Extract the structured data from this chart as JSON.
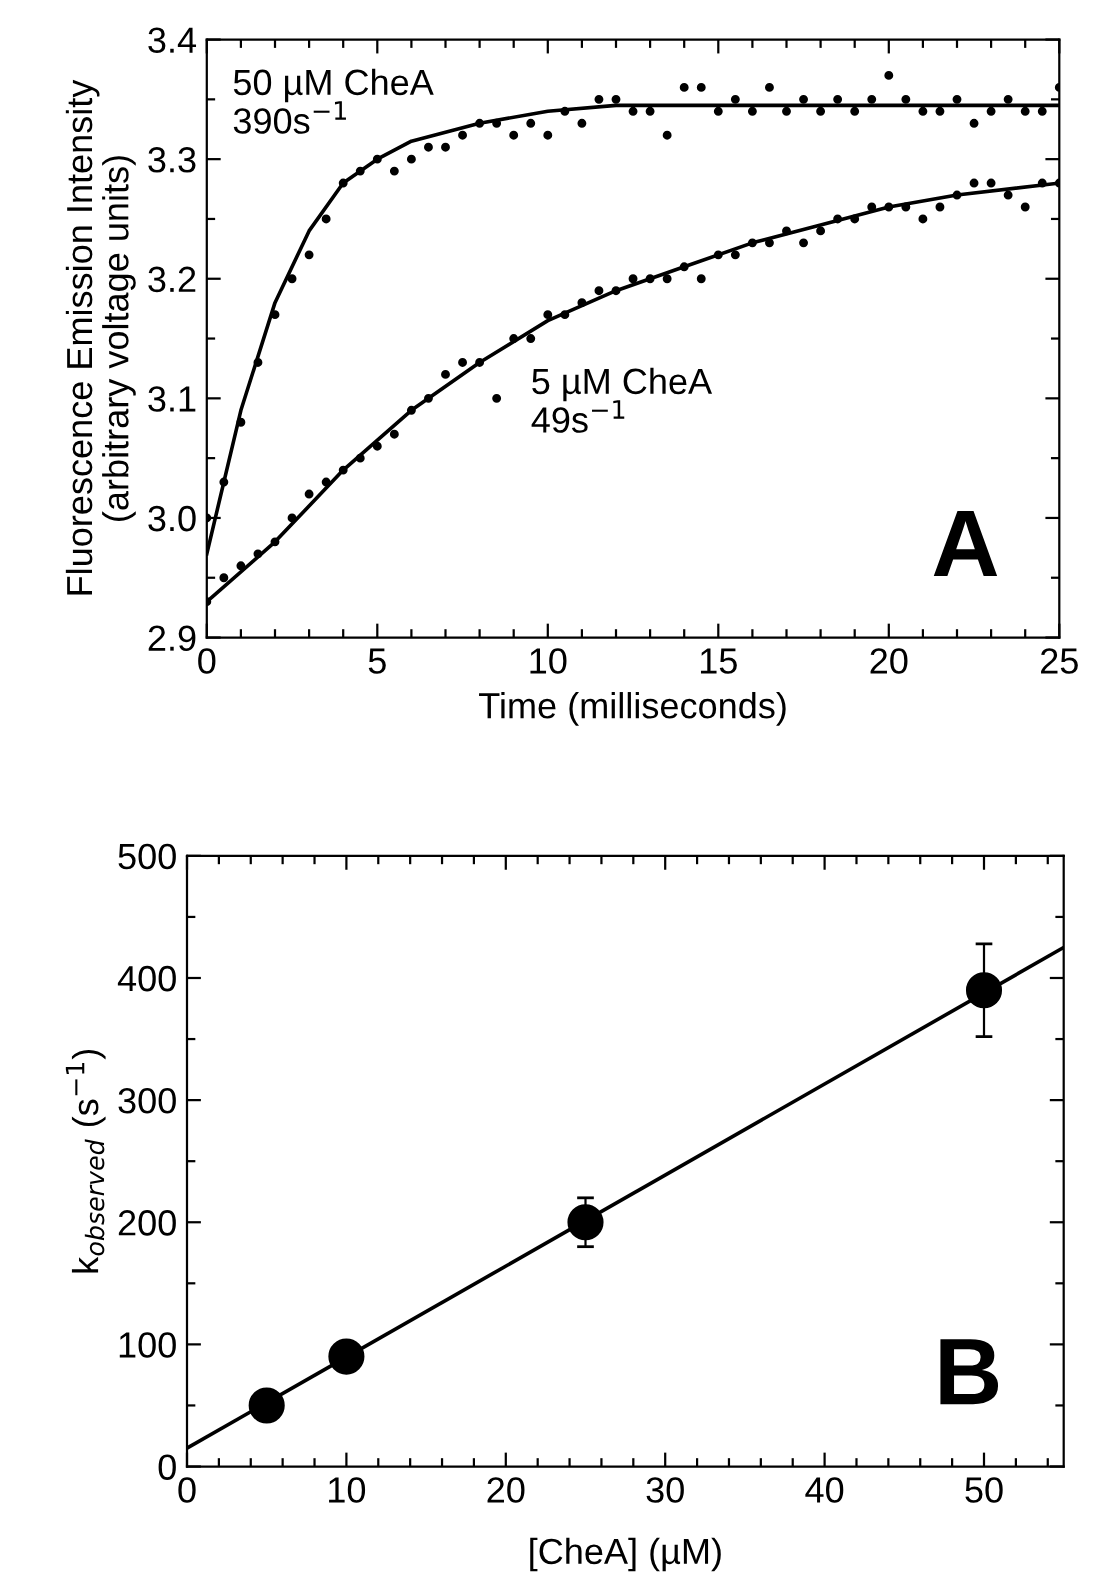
{
  "chart_data": [
    {
      "type": "scatter",
      "xlabel": "Time (milliseconds)",
      "ylabel": "Fluorescence Emission Intensity\n(arbitrary voltage units)",
      "xlim": [
        0,
        25
      ],
      "ylim": [
        2.9,
        3.4
      ],
      "xticks": [
        0,
        {
          "value": 1,
          "label": null
        },
        {
          "value": 2,
          "label": null
        },
        {
          "value": 3,
          "label": null
        },
        {
          "value": 4,
          "label": null
        },
        5,
        {
          "value": 6,
          "label": null
        },
        {
          "value": 7,
          "label": null
        },
        {
          "value": 8,
          "label": null
        },
        {
          "value": 9,
          "label": null
        },
        10,
        {
          "value": 11,
          "label": null
        },
        {
          "value": 12,
          "label": null
        },
        {
          "value": 13,
          "label": null
        },
        {
          "value": 14,
          "label": null
        },
        15,
        {
          "value": 16,
          "label": null
        },
        {
          "value": 17,
          "label": null
        },
        {
          "value": 18,
          "label": null
        },
        {
          "value": 19,
          "label": null
        },
        20,
        {
          "value": 21,
          "label": null
        },
        {
          "value": 22,
          "label": null
        },
        {
          "value": 23,
          "label": null
        },
        {
          "value": 24,
          "label": null
        },
        25
      ],
      "yticks": [
        {
          "value": 2.9,
          "label": "2.9"
        },
        {
          "value": 2.95,
          "label": null
        },
        {
          "value": 3.0,
          "label": "3.0"
        },
        {
          "value": 3.05,
          "label": null
        },
        {
          "value": 3.1,
          "label": "3.1"
        },
        {
          "value": 3.15,
          "label": null
        },
        {
          "value": 3.2,
          "label": "3.2"
        },
        {
          "value": 3.25,
          "label": null
        },
        {
          "value": 3.3,
          "label": "3.3"
        },
        {
          "value": 3.35,
          "label": null
        },
        {
          "value": 3.4,
          "label": "3.4"
        }
      ],
      "marker": "circle",
      "series": [
        {
          "color": "#000000",
          "x": [
            0,
            0.5,
            1,
            1.5,
            2,
            2.5,
            3,
            3.5,
            4,
            4.5,
            5,
            5.5,
            6,
            6.5,
            7,
            7.5,
            8,
            8.5,
            9,
            9.5,
            10,
            10.5,
            11,
            11.5,
            12,
            12.5,
            13,
            13.5,
            14,
            14.5,
            15,
            15.5,
            16,
            16.5,
            17,
            17.5,
            18,
            18.5,
            19,
            19.5,
            20,
            20.5,
            21,
            21.5,
            22,
            22.5,
            23,
            23.5,
            24,
            24.5,
            25
          ],
          "values": [
            3.0,
            3.03,
            3.08,
            3.13,
            3.17,
            3.2,
            3.22,
            3.25,
            3.28,
            3.29,
            3.3,
            3.29,
            3.3,
            3.31,
            3.31,
            3.32,
            3.33,
            3.33,
            3.32,
            3.33,
            3.32,
            3.34,
            3.33,
            3.35,
            3.35,
            3.34,
            3.34,
            3.32,
            3.36,
            3.36,
            3.34,
            3.35,
            3.34,
            3.36,
            3.34,
            3.35,
            3.34,
            3.35,
            3.34,
            3.35,
            3.37,
            3.35,
            3.34,
            3.34,
            3.35,
            3.33,
            3.34,
            3.35,
            3.34,
            3.34,
            3.36
          ]
        },
        {
          "color": "#000000",
          "x": [
            0,
            0.5,
            1,
            1.5,
            2,
            2.5,
            3,
            3.5,
            4,
            4.5,
            5,
            5.5,
            6,
            6.5,
            7,
            7.5,
            8,
            8.5,
            9,
            9.5,
            10,
            10.5,
            11,
            11.5,
            12,
            12.5,
            13,
            13.5,
            14,
            14.5,
            15,
            15.5,
            16,
            16.5,
            17,
            17.5,
            18,
            18.5,
            19,
            19.5,
            20,
            20.5,
            21,
            21.5,
            22,
            22.5,
            23,
            23.5,
            24,
            24.5,
            25
          ],
          "values": [
            2.93,
            2.95,
            2.96,
            2.97,
            2.98,
            3.0,
            3.02,
            3.03,
            3.04,
            3.05,
            3.06,
            3.07,
            3.09,
            3.1,
            3.12,
            3.13,
            3.13,
            3.1,
            3.15,
            3.15,
            3.17,
            3.17,
            3.18,
            3.19,
            3.19,
            3.2,
            3.2,
            3.2,
            3.21,
            3.2,
            3.22,
            3.22,
            3.23,
            3.23,
            3.24,
            3.23,
            3.24,
            3.25,
            3.25,
            3.26,
            3.26,
            3.26,
            3.25,
            3.26,
            3.27,
            3.28,
            3.28,
            3.27,
            3.26,
            3.28,
            3.28
          ]
        },
        {
          "type": "line",
          "color": "#000000",
          "marker": "none",
          "x": [
            0,
            1,
            2,
            3,
            4,
            5,
            6,
            8,
            10,
            12,
            15,
            20,
            25
          ],
          "values": [
            2.97,
            3.09,
            3.18,
            3.24,
            3.28,
            3.3,
            3.315,
            3.33,
            3.34,
            3.345,
            3.345,
            3.345,
            3.345
          ]
        },
        {
          "type": "line",
          "color": "#000000",
          "marker": "none",
          "x": [
            0,
            2,
            4,
            6,
            8,
            10,
            12,
            14,
            16,
            18,
            20,
            22,
            25
          ],
          "values": [
            2.93,
            2.98,
            3.04,
            3.09,
            3.13,
            3.165,
            3.19,
            3.21,
            3.23,
            3.245,
            3.26,
            3.27,
            3.28
          ]
        }
      ],
      "annotations": [
        "50 µM CheA\n390s$^{−1}$",
        "5 µM CheA\n49s$^{−1}$",
        "A"
      ]
    },
    {
      "type": "scatter",
      "xlabel": "[CheA] (µM)",
      "ylabel": "k$_{observed}$ (s$^{−1}$)",
      "xlim": [
        0,
        55
      ],
      "ylim": [
        0,
        500
      ],
      "xticks": [
        0,
        {
          "value": 2,
          "label": null
        },
        {
          "value": 4,
          "label": null
        },
        {
          "value": 6,
          "label": null
        },
        {
          "value": 8,
          "label": null
        },
        10,
        {
          "value": 12,
          "label": null
        },
        {
          "value": 14,
          "label": null
        },
        {
          "value": 16,
          "label": null
        },
        {
          "value": 18,
          "label": null
        },
        20,
        {
          "value": 22,
          "label": null
        },
        {
          "value": 24,
          "label": null
        },
        {
          "value": 26,
          "label": null
        },
        {
          "value": 28,
          "label": null
        },
        30,
        {
          "value": 32,
          "label": null
        },
        {
          "value": 34,
          "label": null
        },
        {
          "value": 36,
          "label": null
        },
        {
          "value": 38,
          "label": null
        },
        40,
        {
          "value": 42,
          "label": null
        },
        {
          "value": 44,
          "label": null
        },
        {
          "value": 46,
          "label": null
        },
        {
          "value": 48,
          "label": null
        },
        50,
        {
          "value": 52,
          "label": null
        },
        {
          "value": 54,
          "label": null
        }
      ],
      "yticks": [
        0,
        {
          "value": 50,
          "label": null
        },
        100,
        {
          "value": 150,
          "label": null
        },
        200,
        {
          "value": 250,
          "label": null
        },
        300,
        {
          "value": 350,
          "label": null
        },
        400,
        {
          "value": 450,
          "label": null
        },
        500
      ],
      "marker": "circle",
      "series": [
        {
          "type": "line",
          "color": "#000000",
          "marker": "none",
          "x": [
            0,
            55
          ],
          "values": [
            15,
            425
          ]
        },
        {
          "color": "#000000",
          "x": [
            5,
            10,
            25,
            50
          ],
          "values": [
            50,
            90,
            200,
            390
          ],
          "errors": [
            null,
            null,
            20,
            38
          ]
        }
      ],
      "annotations": [
        "B"
      ]
    }
  ]
}
